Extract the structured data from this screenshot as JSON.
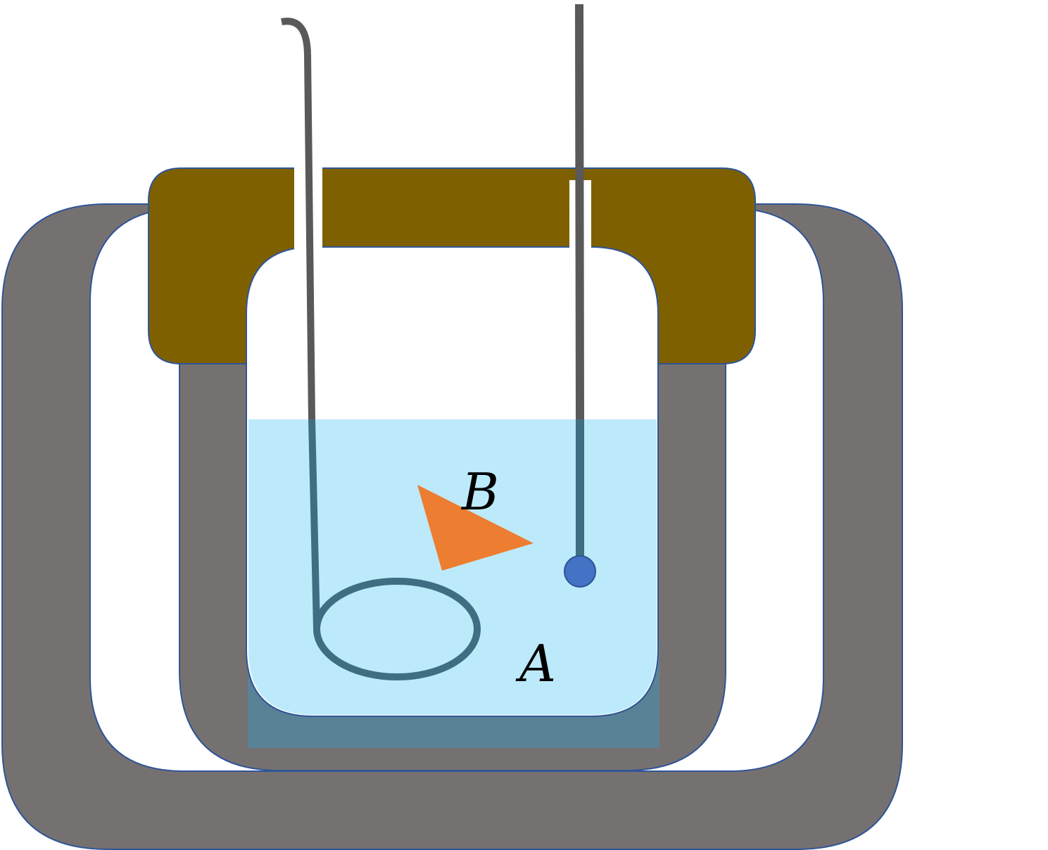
{
  "labels": {
    "a": "A",
    "b": "B"
  },
  "colors": {
    "background": "#ffffff",
    "outer_jacket": "#767171",
    "jacket_outline": "#2f5597",
    "lid": "#7f6000",
    "liquid": "#bdeafb",
    "liquid_shadow": "#5a8296",
    "rod": "#595959",
    "ring_stirrer": "#3f6e82",
    "thermometer_bulb": "#4472c4",
    "object_b": "#ed7d31",
    "label": "#000000"
  },
  "icons": {
    "container": "double-walled-calorimeter-icon",
    "stirrer": "ring-stirrer-icon",
    "thermometer": "thermometer-icon",
    "object": "triangle-object-icon"
  }
}
